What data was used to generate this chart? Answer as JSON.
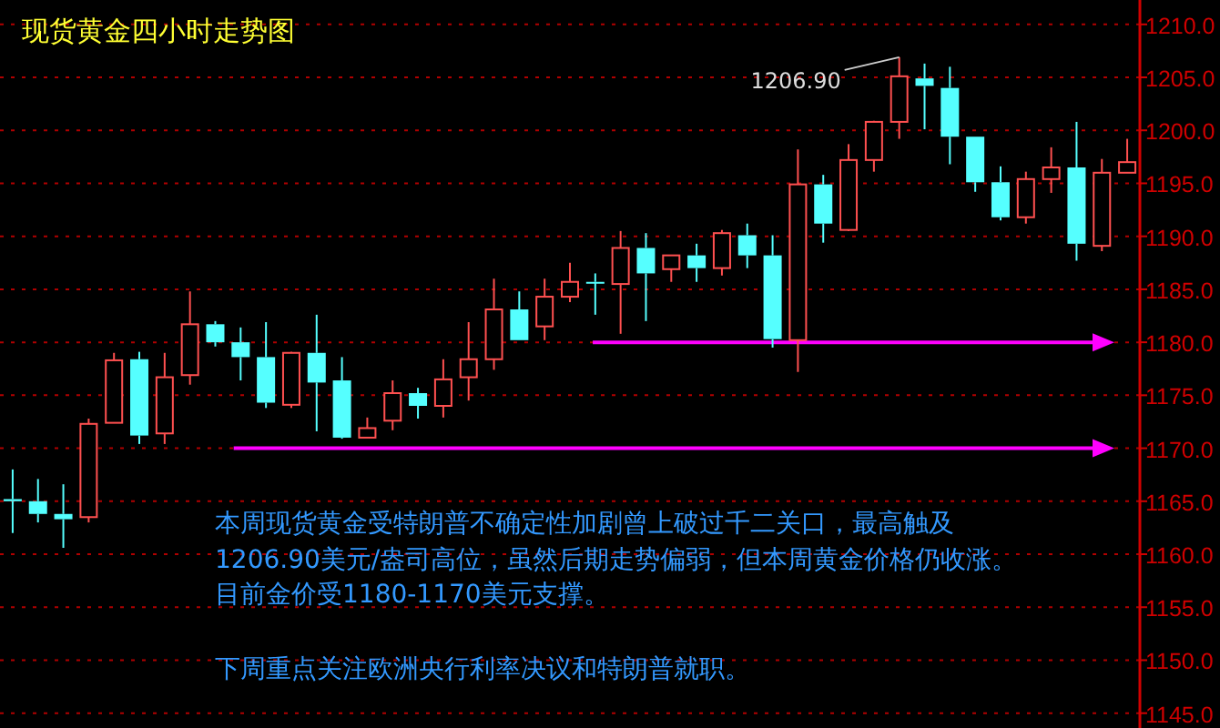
{
  "chart_data": {
    "type": "candlestick",
    "title": "现货黄金四小时走势图",
    "categories": [
      null,
      null,
      null,
      null,
      null,
      null,
      null,
      null,
      null,
      null,
      null,
      null,
      null,
      null,
      null,
      null,
      null,
      null,
      null,
      null,
      null,
      null,
      null,
      null,
      null,
      null,
      null,
      null,
      null,
      null,
      null,
      null,
      null,
      null,
      null,
      null,
      null,
      null,
      null,
      null,
      null,
      null,
      null,
      null,
      null
    ],
    "ohlc": [
      [
        1165.2,
        1168.0,
        1162.0,
        1165.0
      ],
      [
        1165.0,
        1167.1,
        1163.0,
        1163.8
      ],
      [
        1163.8,
        1166.6,
        1160.6,
        1163.3
      ],
      [
        1163.5,
        1172.8,
        1163.0,
        1172.3
      ],
      [
        1172.4,
        1179.0,
        1172.4,
        1178.3
      ],
      [
        1178.4,
        1179.1,
        1170.4,
        1171.2
      ],
      [
        1171.4,
        1179.0,
        1170.4,
        1176.7
      ],
      [
        1176.9,
        1184.8,
        1176.0,
        1181.7
      ],
      [
        1181.7,
        1182.0,
        1179.6,
        1180.0
      ],
      [
        1180.0,
        1181.4,
        1176.4,
        1178.6
      ],
      [
        1178.6,
        1181.9,
        1173.8,
        1174.3
      ],
      [
        1174.1,
        1179.1,
        1173.8,
        1179.0
      ],
      [
        1179.0,
        1182.6,
        1171.6,
        1176.2
      ],
      [
        1176.4,
        1178.6,
        1170.9,
        1171.0
      ],
      [
        1171.0,
        1172.9,
        1171.0,
        1171.9
      ],
      [
        1172.6,
        1176.4,
        1171.7,
        1175.2
      ],
      [
        1175.2,
        1175.7,
        1172.8,
        1174.0
      ],
      [
        1174.0,
        1178.4,
        1172.9,
        1176.5
      ],
      [
        1176.7,
        1181.9,
        1174.5,
        1178.4
      ],
      [
        1178.4,
        1186.0,
        1177.4,
        1183.1
      ],
      [
        1183.1,
        1184.8,
        1180.2,
        1180.2
      ],
      [
        1181.5,
        1186.0,
        1180.2,
        1184.3
      ],
      [
        1184.3,
        1187.5,
        1183.8,
        1185.7
      ],
      [
        1185.7,
        1186.5,
        1182.6,
        1185.6
      ],
      [
        1185.5,
        1190.5,
        1180.8,
        1188.9
      ],
      [
        1188.9,
        1190.3,
        1182.0,
        1186.5
      ],
      [
        1186.9,
        1188.2,
        1185.7,
        1188.2
      ],
      [
        1188.2,
        1189.3,
        1185.7,
        1187.0
      ],
      [
        1187.0,
        1190.6,
        1186.3,
        1190.3
      ],
      [
        1190.1,
        1191.2,
        1187.0,
        1188.2
      ],
      [
        1188.2,
        1190.1,
        1179.5,
        1180.3
      ],
      [
        1180.2,
        1198.2,
        1177.2,
        1194.9
      ],
      [
        1194.9,
        1195.8,
        1189.4,
        1191.2
      ],
      [
        1190.6,
        1198.7,
        1190.5,
        1197.2
      ],
      [
        1197.2,
        1200.9,
        1196.1,
        1200.8
      ],
      [
        1200.8,
        1206.9,
        1199.2,
        1205.1
      ],
      [
        1204.9,
        1206.3,
        1200.1,
        1204.2
      ],
      [
        1204.0,
        1206.0,
        1196.8,
        1199.4
      ],
      [
        1199.4,
        1199.4,
        1194.2,
        1195.1
      ],
      [
        1195.1,
        1196.6,
        1191.5,
        1191.8
      ],
      [
        1191.8,
        1196.1,
        1191.2,
        1195.4
      ],
      [
        1195.4,
        1198.4,
        1194.1,
        1196.5
      ],
      [
        1196.5,
        1200.8,
        1187.7,
        1189.3
      ],
      [
        1189.1,
        1197.3,
        1188.6,
        1196.0
      ],
      [
        1196.0,
        1199.2,
        1196.0,
        1197.0
      ]
    ],
    "ylim": [
      1143.6,
      1212.3
    ],
    "yticks": [
      {
        "value": 1210,
        "label": "1210.0"
      },
      {
        "value": 1205,
        "label": "1205.0"
      },
      {
        "value": 1200,
        "label": "1200.0"
      },
      {
        "value": 1195,
        "label": "1195.0"
      },
      {
        "value": 1190,
        "label": "1190.0"
      },
      {
        "value": 1185,
        "label": "1185.0"
      },
      {
        "value": 1180,
        "label": "1180.0"
      },
      {
        "value": 1175,
        "label": "1175.0"
      },
      {
        "value": 1170,
        "label": "1170.0"
      },
      {
        "value": 1165,
        "label": "1165.0"
      },
      {
        "value": 1160,
        "label": "1160.0"
      },
      {
        "value": 1155,
        "label": "1155.0"
      },
      {
        "value": 1150,
        "label": "1150.0"
      },
      {
        "value": 1145,
        "label": "1145.0"
      }
    ],
    "tick_labels": "y",
    "grid": "y",
    "ref_lines": [
      {
        "axis": "y",
        "value": 1180,
        "color": "#ff00ff"
      },
      {
        "axis": "y",
        "value": 1170,
        "color": "#ff00ff"
      }
    ],
    "annotations": [
      "1206.90",
      "本周现货黄金受特朗普不确定性加剧曾上破过千二关口，最高触及",
      "1206.90美元/盎司高位，虽然后期走势偏弱，但本周黄金价格仍收涨。",
      "目前金价受1180-1170美元支撑。",
      "下周重点关注欧洲央行利率决议和特朗普就职。"
    ]
  }
}
